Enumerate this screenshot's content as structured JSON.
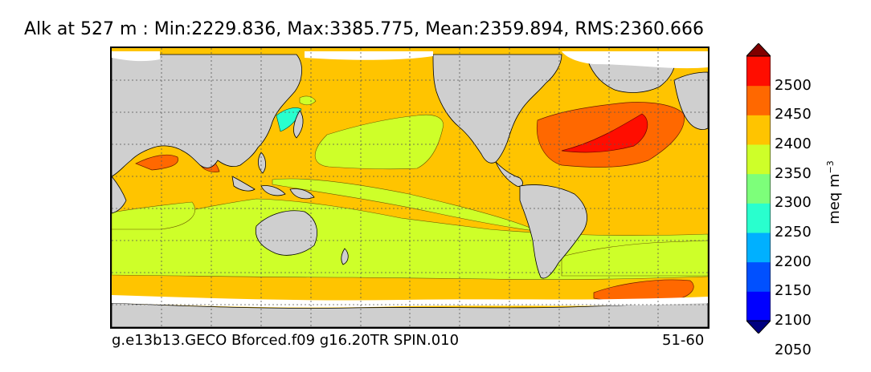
{
  "title": "Alk at 527 m : Min:2229.836, Max:3385.775, Mean:2359.894, RMS:2360.666",
  "caption_left": "g.e13b13.GECO Bforced.f09 g16.20TR SPIN.010",
  "caption_right": "51-60",
  "units": {
    "base": "meq m",
    "exponent": "−3"
  },
  "colorbar": {
    "labels": [
      "2500",
      "2450",
      "2400",
      "2350",
      "2300",
      "2250",
      "2200",
      "2150",
      "2100",
      "2050"
    ],
    "bins": [
      {
        "range": "<2050",
        "color": "#000080"
      },
      {
        "range": "2050-2100",
        "color": "#0000ff"
      },
      {
        "range": "2100-2150",
        "color": "#0050ff"
      },
      {
        "range": "2150-2200",
        "color": "#00b0ff"
      },
      {
        "range": "2200-2250",
        "color": "#29ffce"
      },
      {
        "range": "2250-2300",
        "color": "#7dff7a"
      },
      {
        "range": "2300-2350",
        "color": "#ceff29"
      },
      {
        "range": "2350-2400",
        "color": "#ffc400"
      },
      {
        "range": "2400-2450",
        "color": "#ff6800"
      },
      {
        "range": "2450-2500",
        "color": "#ff0d00"
      },
      {
        "range": ">2500",
        "color": "#800000"
      }
    ],
    "extend": "both"
  },
  "map": {
    "land_color": "#cfcfcf",
    "ice_color": "#ffffff",
    "gridlines": "dashed",
    "projection": "Pacific-centered cylindrical"
  }
}
